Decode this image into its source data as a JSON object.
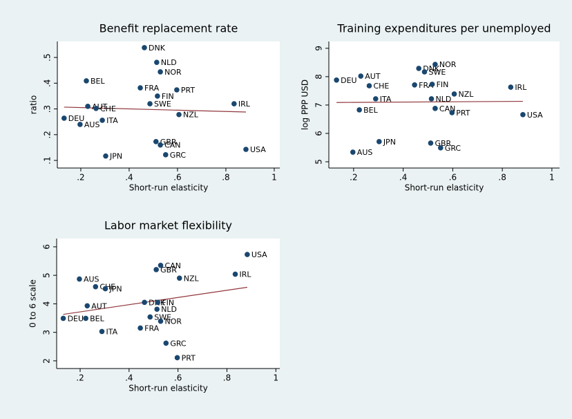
{
  "chart_data": [
    {
      "type": "scatter",
      "title": "Benefit replacement rate",
      "x_label": "Short-run elasticity",
      "y_label": "ratio",
      "color": "#1a476f",
      "labels": [
        "DNK",
        "NLD",
        "NOR",
        "BEL",
        "FRA",
        "PRT",
        "FIN",
        "SWE",
        "IRL",
        "AUT",
        "CHE",
        "NZL",
        "DEU",
        "ITA",
        "AUS",
        "GBR",
        "CAN",
        "GRC",
        "USA",
        "JPN"
      ],
      "x": [
        0.463,
        0.514,
        0.529,
        0.223,
        0.446,
        0.597,
        0.517,
        0.486,
        0.834,
        0.229,
        0.263,
        0.606,
        0.131,
        0.289,
        0.197,
        0.511,
        0.529,
        0.551,
        0.883,
        0.303
      ],
      "y": [
        0.538,
        0.481,
        0.444,
        0.409,
        0.382,
        0.374,
        0.35,
        0.32,
        0.32,
        0.31,
        0.302,
        0.278,
        0.264,
        0.256,
        0.24,
        0.173,
        0.16,
        0.122,
        0.143,
        0.117
      ],
      "fit": {
        "x": [
          0.131,
          0.883
        ],
        "y": [
          0.307,
          0.288
        ],
        "color": "#90353b"
      },
      "xlim": [
        0.103,
        1.023
      ],
      "ylim": [
        0.0705,
        0.562
      ],
      "xticks": [
        {
          "value": 0.2,
          "label": ".2"
        },
        {
          "value": 0.4,
          "label": ".4"
        },
        {
          "value": 0.6,
          "label": ".6"
        },
        {
          "value": 0.8,
          "label": ".8"
        },
        1
      ],
      "yticks": [
        {
          "value": 0.1,
          "label": ".1"
        },
        {
          "value": 0.2,
          "label": ".2"
        },
        {
          "value": 0.3,
          "label": ".3"
        },
        {
          "value": 0.4,
          "label": ".4"
        },
        {
          "value": 0.5,
          "label": ".5"
        }
      ]
    },
    {
      "type": "scatter",
      "title": "Training expenditures per unemployed",
      "x_label": "Short-run elasticity",
      "y_label": "log PPP USD",
      "color": "#1a476f",
      "labels": [
        "DEU",
        "AUT",
        "CHE",
        "DNK",
        "NOR",
        "SWE",
        "FRA",
        "FIN",
        "IRL",
        "NZL",
        "ITA",
        "NLD",
        "BEL",
        "CAN",
        "PRT",
        "USA",
        "JPN",
        "GBR",
        "GRC",
        "AUS"
      ],
      "x": [
        0.131,
        0.229,
        0.263,
        0.463,
        0.529,
        0.486,
        0.446,
        0.517,
        0.834,
        0.606,
        0.289,
        0.514,
        0.223,
        0.529,
        0.597,
        0.883,
        0.303,
        0.511,
        0.551,
        0.197
      ],
      "y": [
        7.88,
        8.02,
        7.68,
        8.29,
        8.43,
        8.17,
        7.71,
        7.73,
        7.63,
        7.39,
        7.22,
        7.22,
        6.83,
        6.88,
        6.73,
        6.66,
        5.71,
        5.66,
        5.49,
        5.34
      ],
      "fit": {
        "x": [
          0.131,
          0.883
        ],
        "y": [
          7.09,
          7.13
        ],
        "color": "#90353b"
      },
      "xlim": [
        0.1,
        1.031
      ],
      "ylim": [
        4.78,
        9.24
      ],
      "xticks": [
        {
          "value": 0.2,
          "label": ".2"
        },
        {
          "value": 0.4,
          "label": ".4"
        },
        {
          "value": 0.6,
          "label": ".6"
        },
        {
          "value": 0.8,
          "label": ".8"
        },
        1
      ],
      "yticks": [
        5,
        6,
        7,
        8,
        9
      ]
    },
    {
      "type": "scatter",
      "title": "Labor market flexibility",
      "x_label": "Short-run elasticity",
      "y_label": "0 to 6 scale",
      "color": "#1a476f",
      "labels": [
        "USA",
        "CAN",
        "GBR",
        "IRL",
        "NZL",
        "AUS",
        "CHE",
        "JPN",
        "DNK",
        "FIN",
        "AUT",
        "NLD",
        "SWE",
        "DEU",
        "BEL",
        "NOR",
        "FRA",
        "ITA",
        "GRC",
        "PRT"
      ],
      "x": [
        0.883,
        0.529,
        0.511,
        0.834,
        0.606,
        0.197,
        0.263,
        0.303,
        0.463,
        0.517,
        0.229,
        0.514,
        0.486,
        0.131,
        0.223,
        0.529,
        0.446,
        0.289,
        0.551,
        0.597
      ],
      "y": [
        5.73,
        5.35,
        5.2,
        5.04,
        4.9,
        4.87,
        4.6,
        4.53,
        4.05,
        4.05,
        3.93,
        3.81,
        3.54,
        3.49,
        3.49,
        3.39,
        3.15,
        3.03,
        2.62,
        2.11
      ],
      "fit": {
        "x": [
          0.131,
          0.883
        ],
        "y": [
          3.63,
          4.58
        ],
        "color": "#90353b"
      },
      "xlim": [
        0.104,
        1.016
      ],
      "ylim": [
        1.73,
        6.29
      ],
      "xticks": [
        {
          "value": 0.2,
          "label": ".2"
        },
        {
          "value": 0.4,
          "label": ".4"
        },
        {
          "value": 0.6,
          "label": ".6"
        },
        {
          "value": 0.8,
          "label": ".8"
        },
        1
      ],
      "yticks": [
        2,
        3,
        4,
        5,
        6
      ]
    }
  ]
}
